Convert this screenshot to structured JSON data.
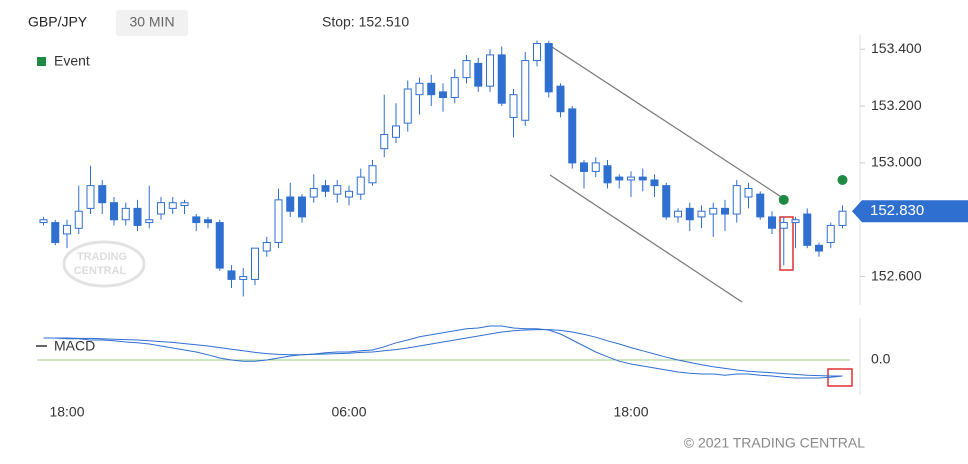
{
  "chart_data": {
    "type": "candlestick",
    "symbol": "GBP/JPY",
    "interval": "30 MIN",
    "stop_label": "Stop: 152.510",
    "footer": "© 2021 TRADING CENTRAL",
    "watermark": [
      "TRADING",
      "CENTRAL"
    ],
    "categories": [
      null,
      null,
      "18:00",
      null,
      null,
      null,
      null,
      null,
      null,
      null,
      null,
      null,
      null,
      null,
      null,
      null,
      null,
      null,
      null,
      null,
      null,
      null,
      null,
      null,
      null,
      null,
      "06:00",
      null,
      null,
      null,
      null,
      null,
      null,
      null,
      null,
      null,
      null,
      null,
      null,
      null,
      null,
      null,
      null,
      null,
      null,
      null,
      null,
      null,
      null,
      null,
      "18:00",
      null,
      null,
      null,
      null,
      null,
      null,
      null,
      null,
      null,
      null,
      null,
      null,
      null,
      null,
      null,
      null,
      null,
      null
    ],
    "open": [
      152.79,
      152.79,
      152.75,
      152.77,
      152.84,
      152.92,
      152.86,
      152.8,
      152.84,
      152.79,
      152.82,
      152.84,
      152.85,
      152.81,
      152.8,
      152.79,
      152.62,
      152.59,
      152.59,
      152.69,
      152.72,
      152.88,
      152.88,
      152.88,
      152.92,
      152.89,
      152.88,
      152.89,
      152.93,
      153.05,
      153.09,
      153.14,
      153.24,
      153.28,
      153.25,
      153.23,
      153.3,
      153.35,
      153.27,
      153.38,
      153.16,
      153.15,
      153.36,
      153.42,
      153.27,
      153.19,
      153.0,
      152.97,
      152.99,
      152.95,
      152.94,
      152.95,
      152.94,
      152.92,
      152.81,
      152.84,
      152.81,
      152.82,
      152.84,
      152.82,
      152.88,
      152.89,
      152.81,
      152.77,
      152.79,
      152.82,
      152.71,
      152.72,
      152.78
    ],
    "high": [
      152.81,
      152.8,
      152.8,
      152.92,
      152.99,
      152.94,
      152.88,
      152.86,
      152.87,
      152.92,
      152.88,
      152.88,
      152.87,
      152.82,
      152.81,
      152.8,
      152.64,
      152.63,
      152.7,
      152.74,
      152.91,
      152.93,
      152.89,
      152.96,
      152.94,
      152.94,
      152.92,
      152.98,
      153.01,
      153.24,
      153.21,
      153.29,
      153.3,
      153.31,
      153.28,
      153.33,
      153.38,
      153.37,
      153.4,
      153.41,
      153.26,
      153.39,
      153.43,
      153.43,
      153.28,
      153.2,
      153.01,
      153.02,
      153.01,
      152.96,
      152.97,
      152.98,
      152.96,
      152.93,
      152.84,
      152.86,
      152.85,
      152.86,
      152.87,
      152.94,
      152.93,
      152.9,
      152.83,
      152.81,
      152.81,
      152.84,
      152.72,
      152.79,
      152.85
    ],
    "low": [
      152.78,
      152.71,
      152.7,
      152.75,
      152.82,
      152.82,
      152.78,
      152.78,
      152.76,
      152.77,
      152.8,
      152.82,
      152.82,
      152.76,
      152.77,
      152.62,
      152.56,
      152.53,
      152.57,
      152.67,
      152.7,
      152.81,
      152.79,
      152.86,
      152.88,
      152.86,
      152.85,
      152.87,
      152.92,
      153.02,
      153.07,
      153.11,
      153.17,
      153.2,
      153.18,
      153.21,
      153.28,
      153.25,
      153.25,
      153.2,
      153.09,
      153.13,
      153.34,
      153.23,
      153.16,
      152.98,
      152.91,
      152.95,
      152.91,
      152.91,
      152.88,
      152.9,
      152.88,
      152.8,
      152.79,
      152.76,
      152.77,
      152.74,
      152.76,
      152.79,
      152.84,
      152.8,
      152.75,
      152.64,
      152.7,
      152.7,
      152.67,
      152.7,
      152.77
    ],
    "close": [
      152.8,
      152.72,
      152.78,
      152.83,
      152.92,
      152.86,
      152.8,
      152.84,
      152.78,
      152.8,
      152.86,
      152.86,
      152.86,
      152.79,
      152.79,
      152.63,
      152.59,
      152.6,
      152.7,
      152.72,
      152.87,
      152.83,
      152.81,
      152.91,
      152.9,
      152.92,
      152.9,
      152.95,
      152.99,
      153.1,
      153.13,
      153.26,
      153.28,
      153.24,
      153.23,
      153.3,
      153.36,
      153.27,
      153.38,
      153.21,
      153.24,
      153.36,
      153.42,
      153.25,
      153.18,
      153.0,
      152.97,
      153.0,
      152.93,
      152.94,
      152.95,
      152.94,
      152.92,
      152.81,
      152.83,
      152.8,
      152.83,
      152.84,
      152.82,
      152.92,
      152.91,
      152.81,
      152.77,
      152.79,
      152.8,
      152.71,
      152.69,
      152.78,
      152.83
    ],
    "up_color": "#ffffff",
    "down_color": "#2f6fd0",
    "candle_stroke": "#2f6fd0",
    "ylim": [
      152.5,
      153.45
    ],
    "yticks": [
      {
        "value": 152.6,
        "label": "152.600"
      },
      {
        "value": 153.0,
        "label": "153.000"
      },
      {
        "value": 153.2,
        "label": "153.200"
      },
      {
        "value": 153.4,
        "label": "153.400"
      }
    ],
    "last_price": {
      "value": 152.83,
      "label": "152.830",
      "color": "#2f6fd0"
    },
    "events": {
      "name": "Event",
      "color": "#1e8a44",
      "points": [
        {
          "index": 63,
          "value": 152.87
        },
        {
          "index": 68,
          "value": 152.94
        }
      ]
    },
    "macd": {
      "ylim": [
        -0.075,
        0.1
      ],
      "yticks": [
        {
          "value": 0,
          "label": "0.0"
        }
      ],
      "zero_color": "#9ccc8a",
      "line": {
        "name": "MACD",
        "color": "#2f6fd0",
        "values": [
          0.055,
          0.055,
          0.053,
          0.053,
          0.05,
          0.05,
          0.048,
          0.045,
          0.043,
          0.04,
          0.035,
          0.03,
          0.025,
          0.02,
          0.013,
          0.005,
          0,
          -0.003,
          -0.003,
          0,
          0.005,
          0.01,
          0.013,
          0.015,
          0.018,
          0.02,
          0.02,
          0.023,
          0.025,
          0.033,
          0.043,
          0.05,
          0.058,
          0.063,
          0.068,
          0.073,
          0.078,
          0.08,
          0.085,
          0.085,
          0.08,
          0.078,
          0.078,
          0.075,
          0.065,
          0.05,
          0.035,
          0.02,
          0.008,
          -0.003,
          -0.01,
          -0.015,
          -0.02,
          -0.025,
          -0.03,
          -0.033,
          -0.035,
          -0.035,
          -0.038,
          -0.035,
          -0.035,
          -0.038,
          -0.04,
          -0.043,
          -0.045,
          -0.045,
          -0.045,
          -0.043,
          -0.04
        ]
      },
      "signal": {
        "color": "#2f6fd0",
        "values": [
          0.055,
          0.055,
          0.055,
          0.054,
          0.054,
          0.053,
          0.052,
          0.051,
          0.05,
          0.048,
          0.046,
          0.044,
          0.041,
          0.038,
          0.035,
          0.031,
          0.027,
          0.023,
          0.019,
          0.016,
          0.014,
          0.013,
          0.013,
          0.014,
          0.015,
          0.016,
          0.017,
          0.019,
          0.02,
          0.023,
          0.026,
          0.03,
          0.035,
          0.04,
          0.045,
          0.05,
          0.055,
          0.06,
          0.065,
          0.07,
          0.073,
          0.075,
          0.076,
          0.076,
          0.074,
          0.07,
          0.064,
          0.057,
          0.048,
          0.04,
          0.031,
          0.023,
          0.015,
          0.007,
          0,
          -0.006,
          -0.012,
          -0.017,
          -0.021,
          -0.025,
          -0.028,
          -0.03,
          -0.032,
          -0.034,
          -0.036,
          -0.038,
          -0.039,
          -0.04,
          -0.04
        ]
      }
    }
  }
}
